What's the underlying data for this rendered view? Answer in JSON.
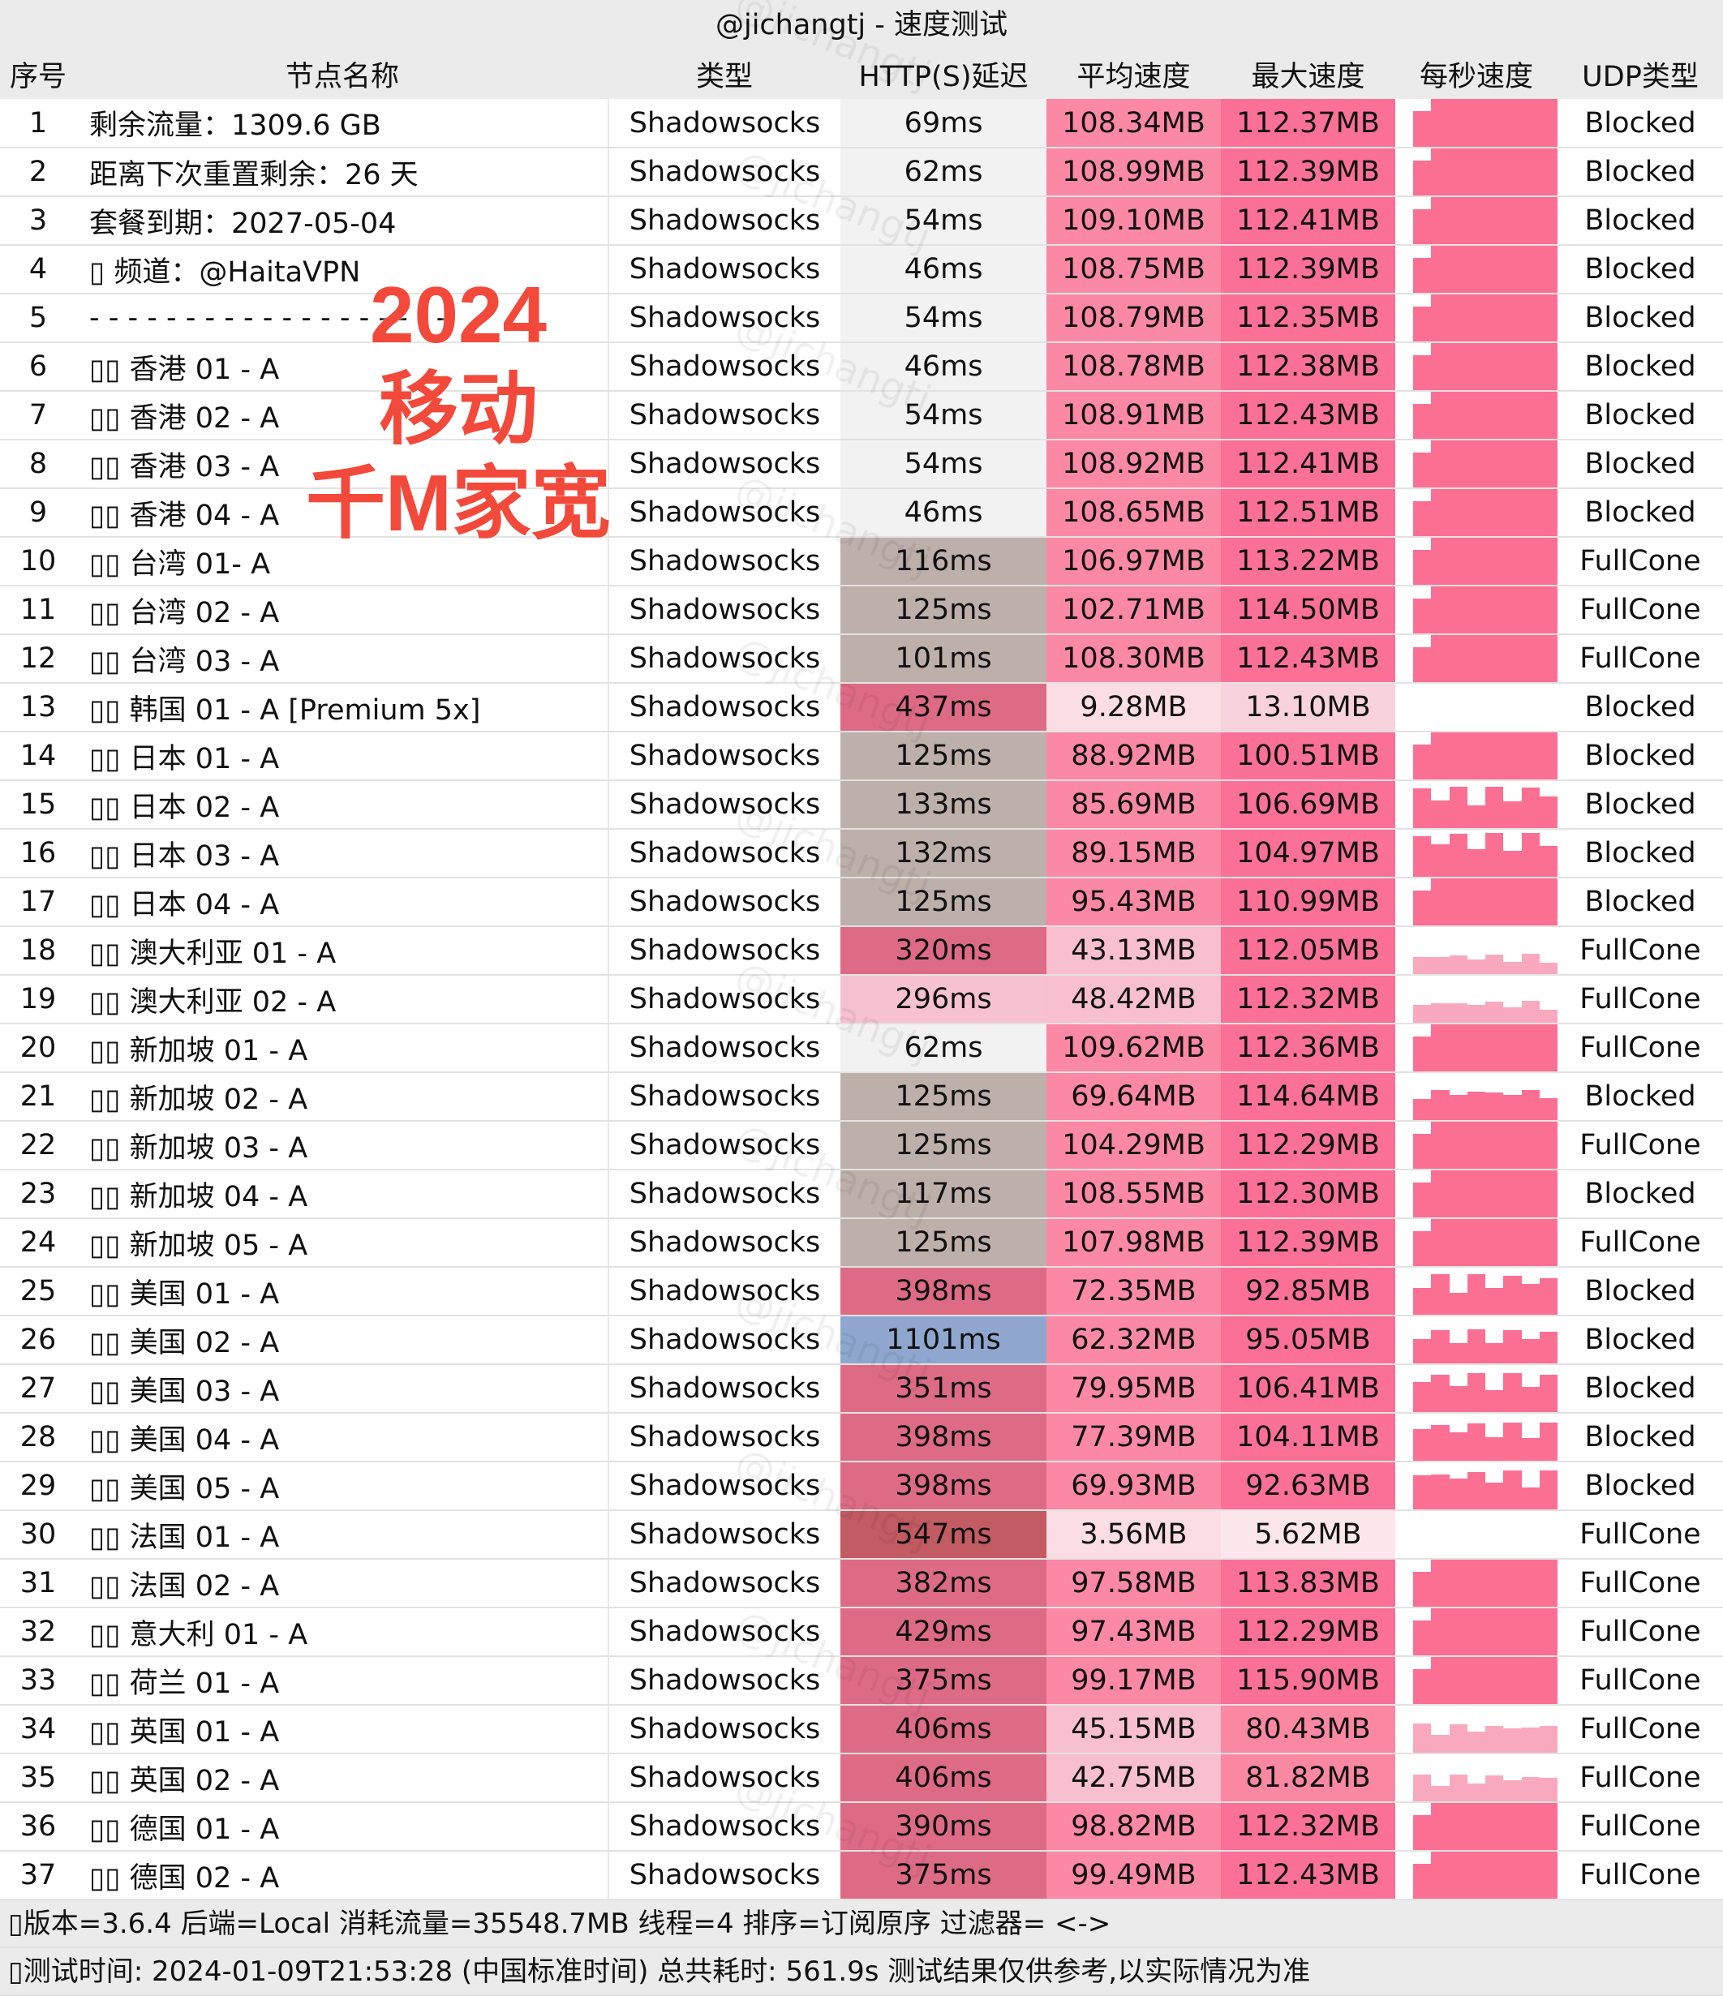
{
  "title": "@jichangtj - 速度测试",
  "watermark": "@jichangtj",
  "headers": [
    "序号",
    "节点名称",
    "类型",
    "HTTP(S)延迟",
    "平均速度",
    "最大速度",
    "每秒速度",
    "UDP类型"
  ],
  "overlay": [
    "2024",
    "移动",
    "千M家宽"
  ],
  "colors": {
    "bar": "#fb6f93",
    "overlay_text": "#f2493b"
  },
  "rows": [
    [
      "1",
      "剩余流量：1309.6 GB",
      "Shadowsocks",
      "69ms",
      "108.34MB",
      "112.37MB",
      "Blocked"
    ],
    [
      "2",
      "距离下次重置剩余：26 天",
      "Shadowsocks",
      "62ms",
      "108.99MB",
      "112.39MB",
      "Blocked"
    ],
    [
      "3",
      "套餐到期：2027-05-04",
      "Shadowsocks",
      "54ms",
      "109.10MB",
      "112.41MB",
      "Blocked"
    ],
    [
      "4",
      "▯ 频道：@HaitaVPN",
      "Shadowsocks",
      "46ms",
      "108.75MB",
      "112.39MB",
      "Blocked"
    ],
    [
      "5",
      "- - - - - - - - - - - - - - - - - - -",
      "Shadowsocks",
      "54ms",
      "108.79MB",
      "112.35MB",
      "Blocked"
    ],
    [
      "6",
      "▯▯ 香港 01 - A",
      "Shadowsocks",
      "46ms",
      "108.78MB",
      "112.38MB",
      "Blocked"
    ],
    [
      "7",
      "▯▯ 香港 02 - A",
      "Shadowsocks",
      "54ms",
      "108.91MB",
      "112.43MB",
      "Blocked"
    ],
    [
      "8",
      "▯▯ 香港 03 - A",
      "Shadowsocks",
      "54ms",
      "108.92MB",
      "112.41MB",
      "Blocked"
    ],
    [
      "9",
      "▯▯ 香港 04 - A",
      "Shadowsocks",
      "46ms",
      "108.65MB",
      "112.51MB",
      "Blocked"
    ],
    [
      "10",
      "▯▯ 台湾 01- A",
      "Shadowsocks",
      "116ms",
      "106.97MB",
      "113.22MB",
      "FullCone"
    ],
    [
      "11",
      "▯▯ 台湾 02 - A",
      "Shadowsocks",
      "125ms",
      "102.71MB",
      "114.50MB",
      "FullCone"
    ],
    [
      "12",
      "▯▯ 台湾 03 - A",
      "Shadowsocks",
      "101ms",
      "108.30MB",
      "112.43MB",
      "FullCone"
    ],
    [
      "13",
      "▯▯ 韩国 01 - A [Premium 5x]",
      "Shadowsocks",
      "437ms",
      "9.28MB",
      "13.10MB",
      "Blocked"
    ],
    [
      "14",
      "▯▯ 日本 01 - A",
      "Shadowsocks",
      "125ms",
      "88.92MB",
      "100.51MB",
      "Blocked"
    ],
    [
      "15",
      "▯▯ 日本 02 - A",
      "Shadowsocks",
      "133ms",
      "85.69MB",
      "106.69MB",
      "Blocked"
    ],
    [
      "16",
      "▯▯ 日本 03 - A",
      "Shadowsocks",
      "132ms",
      "89.15MB",
      "104.97MB",
      "Blocked"
    ],
    [
      "17",
      "▯▯ 日本 04 - A",
      "Shadowsocks",
      "125ms",
      "95.43MB",
      "110.99MB",
      "Blocked"
    ],
    [
      "18",
      "▯▯ 澳大利亚 01 - A",
      "Shadowsocks",
      "320ms",
      "43.13MB",
      "112.05MB",
      "FullCone"
    ],
    [
      "19",
      "▯▯ 澳大利亚 02 - A",
      "Shadowsocks",
      "296ms",
      "48.42MB",
      "112.32MB",
      "FullCone"
    ],
    [
      "20",
      "▯▯ 新加坡 01 - A",
      "Shadowsocks",
      "62ms",
      "109.62MB",
      "112.36MB",
      "FullCone"
    ],
    [
      "21",
      "▯▯ 新加坡 02 - A",
      "Shadowsocks",
      "125ms",
      "69.64MB",
      "114.64MB",
      "Blocked"
    ],
    [
      "22",
      "▯▯ 新加坡 03 - A",
      "Shadowsocks",
      "125ms",
      "104.29MB",
      "112.29MB",
      "FullCone"
    ],
    [
      "23",
      "▯▯ 新加坡 04 - A",
      "Shadowsocks",
      "117ms",
      "108.55MB",
      "112.30MB",
      "Blocked"
    ],
    [
      "24",
      "▯▯ 新加坡 05 - A",
      "Shadowsocks",
      "125ms",
      "107.98MB",
      "112.39MB",
      "FullCone"
    ],
    [
      "25",
      "▯▯ 美国 01 - A",
      "Shadowsocks",
      "398ms",
      "72.35MB",
      "92.85MB",
      "Blocked"
    ],
    [
      "26",
      "▯▯ 美国 02 - A",
      "Shadowsocks",
      "1101ms",
      "62.32MB",
      "95.05MB",
      "Blocked"
    ],
    [
      "27",
      "▯▯ 美国 03 - A",
      "Shadowsocks",
      "351ms",
      "79.95MB",
      "106.41MB",
      "Blocked"
    ],
    [
      "28",
      "▯▯ 美国 04 - A",
      "Shadowsocks",
      "398ms",
      "77.39MB",
      "104.11MB",
      "Blocked"
    ],
    [
      "29",
      "▯▯ 美国 05 - A",
      "Shadowsocks",
      "398ms",
      "69.93MB",
      "92.63MB",
      "Blocked"
    ],
    [
      "30",
      "▯▯ 法国 01 - A",
      "Shadowsocks",
      "547ms",
      "3.56MB",
      "5.62MB",
      "FullCone"
    ],
    [
      "31",
      "▯▯ 法国 02 - A",
      "Shadowsocks",
      "382ms",
      "97.58MB",
      "113.83MB",
      "FullCone"
    ],
    [
      "32",
      "▯▯ 意大利 01 - A",
      "Shadowsocks",
      "429ms",
      "97.43MB",
      "112.29MB",
      "FullCone"
    ],
    [
      "33",
      "▯▯ 荷兰 01 - A",
      "Shadowsocks",
      "375ms",
      "99.17MB",
      "115.90MB",
      "FullCone"
    ],
    [
      "34",
      "▯▯ 英国 01 - A",
      "Shadowsocks",
      "406ms",
      "45.15MB",
      "80.43MB",
      "FullCone"
    ],
    [
      "35",
      "▯▯ 英国 02 - A",
      "Shadowsocks",
      "406ms",
      "42.75MB",
      "81.82MB",
      "FullCone"
    ],
    [
      "36",
      "▯▯ 德国 01 - A",
      "Shadowsocks",
      "390ms",
      "98.82MB",
      "112.32MB",
      "FullCone"
    ],
    [
      "37",
      "▯▯ 德国 02 - A",
      "Shadowsocks",
      "375ms",
      "99.49MB",
      "112.43MB",
      "FullCone"
    ]
  ],
  "footer": {
    "line1": "▯版本=3.6.4  后端=Local  消耗流量=35548.7MB   线程=4  排序=订阅原序  过滤器= <->",
    "line2": "▯测试时间: 2024-01-09T21:53:28 (中国标准时间) 总共耗时: 561.9s 测试结果仅供参考,以实际情况为准"
  }
}
